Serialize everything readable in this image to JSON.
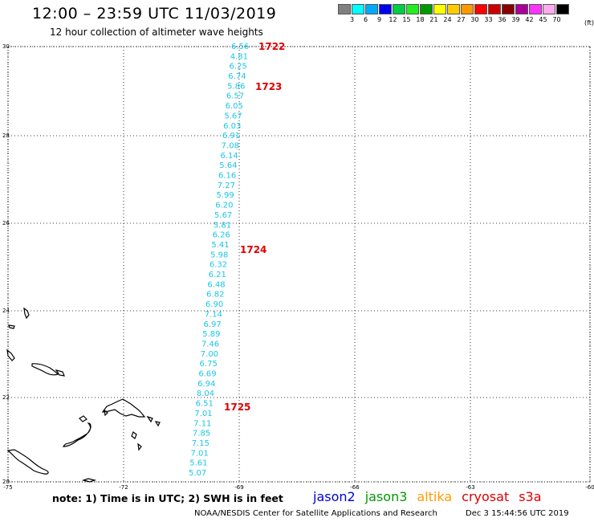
{
  "title": "12:00 – 23:59 UTC 11/03/2019",
  "subtitle": "12 hour collection of altimeter wave heights",
  "legend": {
    "colors": [
      "#808080",
      "#00ffff",
      "#00aaff",
      "#0000ee",
      "#00cc44",
      "#22ee22",
      "#009900",
      "#ffff00",
      "#ffcc00",
      "#ff9900",
      "#ff0000",
      "#cc0000",
      "#880000",
      "#aa0099",
      "#ff33ff",
      "#ffaaee",
      "#000000"
    ],
    "labels": [
      "3",
      "6",
      "9",
      "12",
      "15",
      "18",
      "21",
      "24",
      "27",
      "30",
      "33",
      "36",
      "39",
      "42",
      "45",
      "70"
    ],
    "unit": "(ft)"
  },
  "axes": {
    "y_labels": [
      "30",
      "28",
      "26",
      "24",
      "22",
      "20"
    ],
    "x_labels": [
      "-75",
      "-72",
      "-69",
      "-66",
      "-63",
      "-60"
    ]
  },
  "swh_values": [
    "6.56",
    "4.81",
    "6.25",
    "6.74",
    "5.86",
    "6.57",
    "6.05",
    "5.67",
    "6.03",
    "6.91",
    "7.08",
    "6.14",
    "5.64",
    "6.16",
    "7.27",
    "5.99",
    "6.20",
    "5.67",
    "5.81",
    "6.26",
    "5.41",
    "5.98",
    "6.32",
    "6.21",
    "6.48",
    "6.82",
    "6.90",
    "7.14",
    "6.97",
    "5.89",
    "7.46",
    "7.00",
    "6.75",
    "6.69",
    "6.94",
    "8.04",
    "6.51",
    "7.01",
    "7.11",
    "7.85",
    "7.15",
    "7.01",
    "5.61",
    "5.07"
  ],
  "pass_labels": [
    "1722",
    "1723",
    "1724",
    "1725"
  ],
  "note": "note: 1) Time is in UTC; 2) SWH is in feet",
  "satellites": [
    {
      "name": "jason2",
      "color": "#0000dd"
    },
    {
      "name": "jason3",
      "color": "#009900"
    },
    {
      "name": "altika",
      "color": "#ff9900"
    },
    {
      "name": "cryosat",
      "color": "#dd0000"
    },
    {
      "name": "s3a",
      "color": "#dd0000"
    }
  ],
  "footer": {
    "credit": "NOAA/NESDIS Center for Satellite Applications and Research",
    "timestamp": "Dec  3 15:44:56 UTC 2019"
  }
}
